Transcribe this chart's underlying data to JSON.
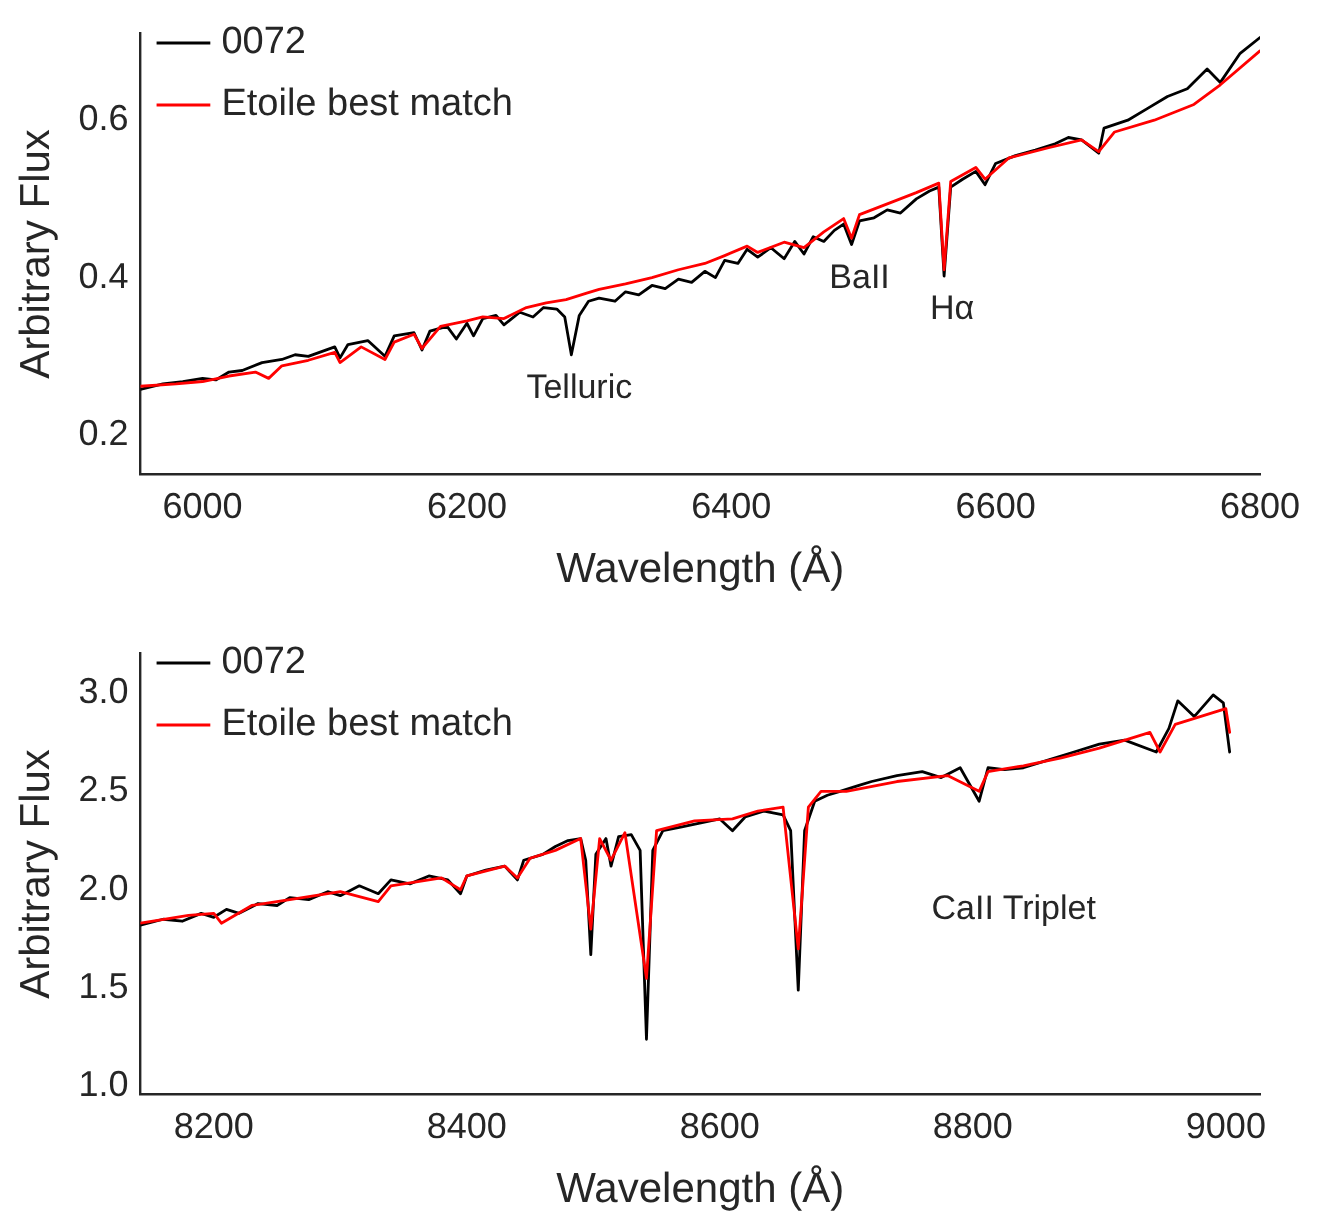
{
  "chart_data": [
    {
      "type": "line",
      "xlabel": "Wavelength (Å)",
      "ylabel": "Arbitrary Flux",
      "xlim": [
        5953,
        6800
      ],
      "xticks": [
        6000,
        6200,
        6400,
        6600,
        6800
      ],
      "ylim": [
        0.15,
        0.71
      ],
      "yticks": [
        0.2,
        0.4,
        0.6
      ],
      "grid": false,
      "legend": "top left",
      "marker": "none",
      "line_style": "solid",
      "annotations": [
        {
          "text": "Telluric",
          "x": 6279,
          "y": 0.302
        },
        {
          "text": "BaII",
          "x": 6491,
          "y": 0.442
        },
        {
          "text": "Hα",
          "x": 6561,
          "y": 0.402
        }
      ],
      "series": [
        {
          "name": "0072",
          "color": "#000000",
          "x": [
            5953,
            5970,
            5985,
            6000,
            6010,
            6020,
            6030,
            6045,
            6060,
            6070,
            6080,
            6090,
            6100,
            6104,
            6110,
            6125,
            6138,
            6145,
            6160,
            6166,
            6172,
            6185,
            6192,
            6200,
            6205,
            6212,
            6222,
            6228,
            6240,
            6250,
            6258,
            6268,
            6274,
            6279,
            6285,
            6292,
            6300,
            6312,
            6320,
            6330,
            6340,
            6350,
            6360,
            6370,
            6380,
            6388,
            6395,
            6405,
            6412,
            6420,
            6430,
            6440,
            6448,
            6455,
            6462,
            6470,
            6478,
            6485,
            6491,
            6497,
            6508,
            6518,
            6528,
            6540,
            6550,
            6557,
            6561,
            6566,
            6575,
            6585,
            6592,
            6600,
            6615,
            6630,
            6645,
            6655,
            6665,
            6678,
            6682,
            6700,
            6715,
            6730,
            6745,
            6760,
            6770,
            6785,
            6800
          ],
          "values": [
            0.258,
            0.265,
            0.268,
            0.272,
            0.27,
            0.28,
            0.282,
            0.292,
            0.296,
            0.302,
            0.3,
            0.306,
            0.312,
            0.298,
            0.315,
            0.32,
            0.3,
            0.326,
            0.33,
            0.308,
            0.332,
            0.338,
            0.322,
            0.342,
            0.326,
            0.348,
            0.352,
            0.34,
            0.356,
            0.35,
            0.362,
            0.36,
            0.35,
            0.302,
            0.352,
            0.37,
            0.374,
            0.37,
            0.382,
            0.378,
            0.39,
            0.386,
            0.398,
            0.394,
            0.408,
            0.4,
            0.422,
            0.418,
            0.436,
            0.426,
            0.438,
            0.424,
            0.446,
            0.43,
            0.452,
            0.446,
            0.46,
            0.468,
            0.442,
            0.472,
            0.476,
            0.486,
            0.482,
            0.5,
            0.51,
            0.515,
            0.402,
            0.515,
            0.525,
            0.535,
            0.518,
            0.545,
            0.555,
            0.562,
            0.57,
            0.578,
            0.575,
            0.558,
            0.59,
            0.6,
            0.615,
            0.63,
            0.64,
            0.665,
            0.648,
            0.685,
            0.705
          ]
        },
        {
          "name": "Etoile best match",
          "color": "#ff0000",
          "x": [
            5953,
            5980,
            6000,
            6020,
            6040,
            6050,
            6060,
            6080,
            6100,
            6104,
            6120,
            6138,
            6145,
            6160,
            6166,
            6180,
            6200,
            6212,
            6228,
            6245,
            6260,
            6275,
            6290,
            6300,
            6320,
            6340,
            6360,
            6380,
            6395,
            6412,
            6420,
            6440,
            6455,
            6470,
            6485,
            6491,
            6497,
            6520,
            6540,
            6557,
            6561,
            6566,
            6585,
            6592,
            6610,
            6640,
            6665,
            6678,
            6690,
            6720,
            6750,
            6770,
            6800
          ],
          "values": [
            0.262,
            0.265,
            0.268,
            0.275,
            0.28,
            0.272,
            0.288,
            0.295,
            0.305,
            0.292,
            0.312,
            0.296,
            0.318,
            0.328,
            0.31,
            0.338,
            0.345,
            0.35,
            0.348,
            0.362,
            0.368,
            0.372,
            0.38,
            0.385,
            0.392,
            0.4,
            0.41,
            0.418,
            0.428,
            0.44,
            0.432,
            0.445,
            0.438,
            0.458,
            0.475,
            0.45,
            0.48,
            0.495,
            0.508,
            0.52,
            0.41,
            0.522,
            0.54,
            0.525,
            0.552,
            0.565,
            0.575,
            0.56,
            0.585,
            0.6,
            0.62,
            0.645,
            0.688
          ]
        }
      ]
    },
    {
      "type": "line",
      "xlabel": "Wavelength (Å)",
      "ylabel": "Arbitrary Flux",
      "xlim": [
        8142,
        9027
      ],
      "xticks": [
        8200,
        8400,
        8600,
        8800,
        9000
      ],
      "ylim": [
        0.96,
        3.2
      ],
      "yticks": [
        {
          "value": 1,
          "label": "1.0"
        },
        1.5,
        {
          "value": 2,
          "label": "2.0"
        },
        2.5,
        {
          "value": 3,
          "label": "3.0"
        }
      ],
      "grid": false,
      "legend": "top left",
      "marker": "none",
      "line_style": "solid",
      "annotations": [
        "CaII Triplet"
      ],
      "series": [
        {
          "name": "0072",
          "color": "#000000",
          "x": [
            8142,
            8160,
            8175,
            8190,
            8200,
            8210,
            8220,
            8235,
            8250,
            8260,
            8275,
            8290,
            8300,
            8315,
            8330,
            8340,
            8355,
            8370,
            8385,
            8395,
            8400,
            8415,
            8430,
            8440,
            8445,
            8460,
            8470,
            8480,
            8490,
            8494,
            8498,
            8502,
            8510,
            8514,
            8520,
            8530,
            8537,
            8542,
            8547,
            8555,
            8570,
            8585,
            8600,
            8610,
            8620,
            8635,
            8650,
            8656,
            8662,
            8667,
            8675,
            8685,
            8695,
            8710,
            8720,
            8740,
            8760,
            8775,
            8790,
            8805,
            8812,
            8825,
            8840,
            8860,
            8880,
            8900,
            8920,
            8945,
            8955,
            8962,
            8975,
            8990,
            8998,
            9003
          ],
          "values": [
            1.82,
            1.85,
            1.84,
            1.88,
            1.86,
            1.9,
            1.88,
            1.93,
            1.92,
            1.96,
            1.95,
            1.99,
            1.97,
            2.02,
            1.98,
            2.05,
            2.03,
            2.07,
            2.05,
            1.98,
            2.07,
            2.1,
            2.12,
            2.05,
            2.15,
            2.18,
            2.22,
            2.25,
            2.26,
            2.15,
            1.67,
            2.18,
            2.26,
            2.12,
            2.27,
            2.28,
            2.2,
            1.24,
            2.2,
            2.3,
            2.32,
            2.34,
            2.36,
            2.3,
            2.37,
            2.4,
            2.38,
            2.3,
            1.49,
            2.3,
            2.45,
            2.48,
            2.5,
            2.53,
            2.55,
            2.58,
            2.6,
            2.57,
            2.62,
            2.45,
            2.62,
            2.61,
            2.62,
            2.66,
            2.7,
            2.74,
            2.76,
            2.7,
            2.82,
            2.96,
            2.88,
            2.99,
            2.95,
            2.7
          ]
        },
        {
          "name": "Etoile best match",
          "color": "#ff0000",
          "x": [
            8142,
            8180,
            8200,
            8206,
            8230,
            8260,
            8300,
            8330,
            8340,
            8380,
            8395,
            8400,
            8430,
            8440,
            8450,
            8470,
            8490,
            8498,
            8505,
            8514,
            8525,
            8542,
            8550,
            8580,
            8610,
            8630,
            8650,
            8662,
            8670,
            8680,
            8700,
            8740,
            8780,
            8805,
            8812,
            8840,
            8870,
            8900,
            8940,
            8948,
            8960,
            9000,
            9003
          ],
          "values": [
            1.83,
            1.87,
            1.88,
            1.83,
            1.92,
            1.95,
            1.99,
            1.94,
            2.02,
            2.06,
            2,
            2.07,
            2.12,
            2.06,
            2.16,
            2.2,
            2.26,
            1.8,
            2.26,
            2.15,
            2.29,
            1.55,
            2.3,
            2.35,
            2.36,
            2.4,
            2.42,
            1.7,
            2.42,
            2.5,
            2.5,
            2.55,
            2.58,
            2.5,
            2.6,
            2.63,
            2.67,
            2.72,
            2.8,
            2.7,
            2.84,
            2.92,
            2.8
          ]
        }
      ]
    }
  ]
}
